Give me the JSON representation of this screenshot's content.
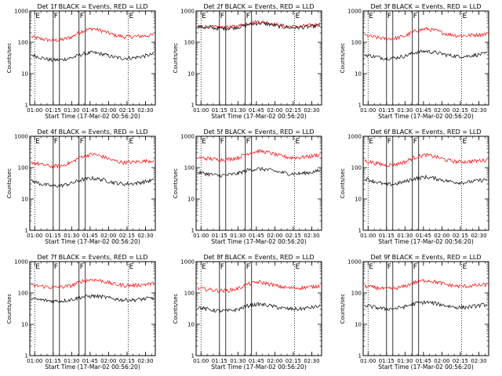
{
  "chart_data": [
    {
      "type": "line",
      "title": "Det 1f BLACK = Events, RED = LLD",
      "xlabel": "Start Time (17-Mar-02 00:56:20)",
      "ylabel": "Counts/sec",
      "y_scale": "log",
      "ylim": [
        1,
        1000
      ],
      "yticks": [
        "1",
        "10",
        "100",
        "1000"
      ],
      "xticks": [
        "01:00",
        "01:15",
        "01:30",
        "01:45",
        "02:00",
        "02:15",
        "02:30"
      ],
      "markers": [
        {
          "label": "E",
          "pos": "01:00"
        },
        {
          "label": "F",
          "pos": "01:15"
        },
        {
          "label": "F",
          "pos": "01:36"
        },
        {
          "label": "E",
          "pos": "02:16"
        }
      ],
      "series": [
        {
          "color": "#ff0000",
          "base": [
            150,
            128,
            115,
            120,
            150,
            230,
            275,
            230,
            175,
            150,
            152,
            160,
            170
          ]
        },
        {
          "color": "#000000",
          "base": [
            40,
            32,
            27,
            28,
            32,
            42,
            47,
            42,
            34,
            31,
            32,
            36,
            42
          ]
        }
      ]
    },
    {
      "type": "line",
      "title": "Det 2f BLACK = Events, RED = LLD",
      "xlabel": "Start Time (17-Mar-02 00:56:20)",
      "ylabel": "Counts/sec",
      "y_scale": "log",
      "ylim": [
        1,
        1000
      ],
      "yticks": [
        "1",
        "10",
        "100",
        "1000"
      ],
      "xticks": [
        "01:00",
        "01:15",
        "01:30",
        "01:45",
        "02:00",
        "02:15",
        "02:30"
      ],
      "markers": [
        {
          "label": "E",
          "pos": "01:00"
        },
        {
          "label": "F",
          "pos": "01:15"
        },
        {
          "label": "F",
          "pos": "01:36"
        },
        {
          "label": "E",
          "pos": "02:16"
        }
      ],
      "series": [
        {
          "color": "#ff0000",
          "base": [
            330,
            315,
            300,
            300,
            330,
            410,
            460,
            420,
            350,
            320,
            320,
            345,
            380
          ]
        },
        {
          "color": "#000000",
          "base": [
            310,
            295,
            280,
            280,
            305,
            370,
            410,
            380,
            320,
            295,
            295,
            315,
            345
          ]
        }
      ]
    },
    {
      "type": "line",
      "title": "Det 3f BLACK = Events, RED = LLD",
      "xlabel": "Start Time (17-Mar-02 00:56:20)",
      "ylabel": "Counts/sec",
      "y_scale": "log",
      "ylim": [
        1,
        1000
      ],
      "yticks": [
        "1",
        "10",
        "100",
        "1000"
      ],
      "xticks": [
        "01:00",
        "01:15",
        "01:30",
        "01:45",
        "02:00",
        "02:15",
        "02:30"
      ],
      "markers": [
        {
          "label": "E",
          "pos": "01:00"
        },
        {
          "label": "F",
          "pos": "01:15"
        },
        {
          "label": "F",
          "pos": "01:36"
        },
        {
          "label": "E",
          "pos": "02:16"
        }
      ],
      "series": [
        {
          "color": "#ff0000",
          "base": [
            165,
            145,
            130,
            135,
            160,
            230,
            270,
            235,
            185,
            165,
            165,
            175,
            185
          ]
        },
        {
          "color": "#000000",
          "base": [
            40,
            35,
            31,
            32,
            37,
            48,
            52,
            47,
            40,
            36,
            36,
            40,
            44
          ]
        }
      ]
    },
    {
      "type": "line",
      "title": "Det 4f BLACK = Events, RED = LLD",
      "xlabel": "Start Time (17-Mar-02 00:56:20)",
      "ylabel": "Counts/sec",
      "y_scale": "log",
      "ylim": [
        1,
        1000
      ],
      "yticks": [
        "1",
        "10",
        "100",
        "1000"
      ],
      "xticks": [
        "01:00",
        "01:15",
        "01:30",
        "01:45",
        "02:00",
        "02:15",
        "02:30"
      ],
      "markers": [
        {
          "label": "E",
          "pos": "01:00"
        },
        {
          "label": "F",
          "pos": "01:15"
        },
        {
          "label": "F",
          "pos": "01:36"
        },
        {
          "label": "E",
          "pos": "02:16"
        }
      ],
      "series": [
        {
          "color": "#ff0000",
          "base": [
            150,
            125,
            110,
            115,
            150,
            230,
            270,
            225,
            170,
            145,
            150,
            160,
            170
          ]
        },
        {
          "color": "#000000",
          "base": [
            38,
            30,
            26,
            27,
            32,
            42,
            46,
            41,
            34,
            30,
            31,
            35,
            40
          ]
        }
      ]
    },
    {
      "type": "line",
      "title": "Det 5f BLACK = Events, RED = LLD",
      "xlabel": "Start Time (17-Mar-02 00:56:20)",
      "ylabel": "Counts/sec",
      "y_scale": "log",
      "ylim": [
        1,
        1000
      ],
      "yticks": [
        "1",
        "10",
        "100",
        "1000"
      ],
      "xticks": [
        "01:00",
        "01:15",
        "01:30",
        "01:45",
        "02:00",
        "02:15",
        "02:30"
      ],
      "markers": [
        {
          "label": "E",
          "pos": "01:00"
        },
        {
          "label": "F",
          "pos": "01:15"
        },
        {
          "label": "F",
          "pos": "01:36"
        },
        {
          "label": "E",
          "pos": "02:16"
        }
      ],
      "series": [
        {
          "color": "#ff0000",
          "base": [
            210,
            195,
            180,
            185,
            210,
            290,
            340,
            300,
            240,
            210,
            210,
            230,
            260
          ]
        },
        {
          "color": "#000000",
          "base": [
            70,
            63,
            56,
            58,
            66,
            85,
            92,
            85,
            72,
            64,
            64,
            70,
            80
          ]
        }
      ]
    },
    {
      "type": "line",
      "title": "Det 6f BLACK = Events, RED = LLD",
      "xlabel": "Start Time (17-Mar-02 00:56:20)",
      "ylabel": "Counts/sec",
      "y_scale": "log",
      "ylim": [
        1,
        1000
      ],
      "yticks": [
        "1",
        "10",
        "100",
        "1000"
      ],
      "xticks": [
        "01:00",
        "01:15",
        "01:30",
        "01:45",
        "02:00",
        "02:15",
        "02:30"
      ],
      "markers": [
        {
          "label": "E",
          "pos": "01:00"
        },
        {
          "label": "F",
          "pos": "01:15"
        },
        {
          "label": "F",
          "pos": "01:36"
        },
        {
          "label": "E",
          "pos": "02:16"
        }
      ],
      "series": [
        {
          "color": "#ff0000",
          "base": [
            165,
            140,
            120,
            125,
            155,
            220,
            255,
            220,
            175,
            155,
            155,
            165,
            175
          ]
        },
        {
          "color": "#000000",
          "base": [
            45,
            36,
            29,
            30,
            36,
            46,
            50,
            45,
            38,
            34,
            34,
            38,
            42
          ]
        }
      ]
    },
    {
      "type": "line",
      "title": "Det 7f BLACK = Events, RED = LLD",
      "xlabel": "Start Time (17-Mar-02 00:56:20)",
      "ylabel": "Counts/sec",
      "y_scale": "log",
      "ylim": [
        1,
        1000
      ],
      "yticks": [
        "1",
        "10",
        "100",
        "1000"
      ],
      "xticks": [
        "01:00",
        "01:15",
        "01:30",
        "01:45",
        "02:00",
        "02:15",
        "02:30"
      ],
      "markers": [
        {
          "label": "E",
          "pos": "01:00"
        },
        {
          "label": "F",
          "pos": "01:15"
        },
        {
          "label": "F",
          "pos": "01:36"
        },
        {
          "label": "E",
          "pos": "02:16"
        }
      ],
      "series": [
        {
          "color": "#ff0000",
          "base": [
            175,
            165,
            150,
            155,
            175,
            240,
            270,
            240,
            195,
            175,
            175,
            185,
            200
          ]
        },
        {
          "color": "#000000",
          "base": [
            65,
            60,
            55,
            56,
            62,
            75,
            80,
            75,
            66,
            60,
            60,
            64,
            70
          ]
        }
      ]
    },
    {
      "type": "line",
      "title": "Det 8f BLACK = Events, RED = LLD",
      "xlabel": "Start Time (17-Mar-02 00:56:20)",
      "ylabel": "Counts/sec",
      "y_scale": "log",
      "ylim": [
        1,
        1000
      ],
      "yticks": [
        "1",
        "10",
        "100",
        "1000"
      ],
      "xticks": [
        "01:00",
        "01:15",
        "01:30",
        "01:45",
        "02:00",
        "02:15",
        "02:30"
      ],
      "markers": [
        {
          "label": "E",
          "pos": "01:00"
        },
        {
          "label": "F",
          "pos": "01:15"
        },
        {
          "label": "F",
          "pos": "01:36"
        },
        {
          "label": "E",
          "pos": "02:16"
        }
      ],
      "series": [
        {
          "color": "#ff0000",
          "base": [
            140,
            130,
            120,
            120,
            140,
            195,
            225,
            195,
            160,
            145,
            145,
            155,
            170
          ]
        },
        {
          "color": "#000000",
          "base": [
            35,
            30,
            27,
            27,
            30,
            40,
            44,
            40,
            34,
            31,
            31,
            34,
            38
          ]
        }
      ]
    },
    {
      "type": "line",
      "title": "Det 9f BLACK = Events, RED = LLD",
      "xlabel": "Start Time (17-Mar-02 00:56:20)",
      "ylabel": "Counts/sec",
      "y_scale": "log",
      "ylim": [
        1,
        1000
      ],
      "yticks": [
        "1",
        "10",
        "100",
        "1000"
      ],
      "xticks": [
        "01:00",
        "01:15",
        "01:30",
        "01:45",
        "02:00",
        "02:15",
        "02:30"
      ],
      "markers": [
        {
          "label": "E",
          "pos": "01:00"
        },
        {
          "label": "F",
          "pos": "01:15"
        },
        {
          "label": "F",
          "pos": "01:36"
        },
        {
          "label": "E",
          "pos": "02:16"
        }
      ],
      "series": [
        {
          "color": "#ff0000",
          "base": [
            165,
            150,
            135,
            140,
            165,
            225,
            255,
            225,
            185,
            165,
            165,
            175,
            185
          ]
        },
        {
          "color": "#000000",
          "base": [
            40,
            35,
            31,
            32,
            37,
            47,
            51,
            46,
            39,
            35,
            35,
            39,
            43
          ]
        }
      ]
    }
  ]
}
